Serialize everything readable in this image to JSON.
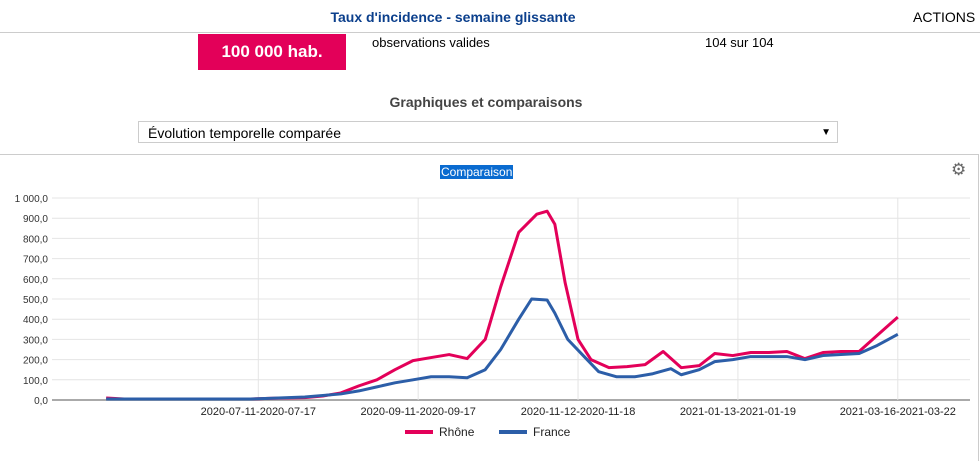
{
  "header": {
    "title": "Taux d'incidence - semaine glissante",
    "actions": "ACTIONS"
  },
  "summary": {
    "unit_badge": "100 000 hab.",
    "obs_label": "observations valides",
    "obs_value": "104 sur 104"
  },
  "section": {
    "title": "Graphiques et comparaisons",
    "select_value": "Évolution temporelle comparée"
  },
  "chart_data": {
    "type": "line",
    "title": "Comparaison",
    "xlabel": "",
    "ylabel": "",
    "ylim": [
      0,
      1000
    ],
    "xlim_days": [
      -21,
      335
    ],
    "grid": true,
    "legend": "bottom",
    "y_ticks": [
      0,
      100,
      200,
      300,
      400,
      500,
      600,
      700,
      800,
      900,
      1000
    ],
    "y_tick_labels": [
      "0,0",
      "100,0",
      "200,0",
      "300,0",
      "400,0",
      "500,0",
      "600,0",
      "700,0",
      "800,0",
      "900,0",
      "1 000,0"
    ],
    "x_ticks": [
      {
        "day": 59,
        "label": "2020-07-11-2020-07-17"
      },
      {
        "day": 121,
        "label": "2020-09-11-2020-09-17"
      },
      {
        "day": 183,
        "label": "2020-11-12-2020-11-18"
      },
      {
        "day": 245,
        "label": "2021-01-13-2021-01-19"
      },
      {
        "day": 307,
        "label": "2021-03-16-2021-03-22"
      }
    ],
    "x_unit": "days since start of series",
    "series": [
      {
        "name": "Rhône",
        "color": "#e30059",
        "points": [
          [
            0,
            10
          ],
          [
            7,
            5
          ],
          [
            14,
            5
          ],
          [
            21,
            5
          ],
          [
            28,
            5
          ],
          [
            35,
            5
          ],
          [
            42,
            5
          ],
          [
            49,
            5
          ],
          [
            56,
            5
          ],
          [
            63,
            8
          ],
          [
            70,
            10
          ],
          [
            77,
            12
          ],
          [
            84,
            20
          ],
          [
            91,
            35
          ],
          [
            98,
            70
          ],
          [
            105,
            100
          ],
          [
            112,
            150
          ],
          [
            119,
            195
          ],
          [
            126,
            210
          ],
          [
            133,
            225
          ],
          [
            140,
            205
          ],
          [
            147,
            300
          ],
          [
            153,
            560
          ],
          [
            160,
            830
          ],
          [
            167,
            920
          ],
          [
            171,
            935
          ],
          [
            174,
            870
          ],
          [
            178,
            580
          ],
          [
            183,
            300
          ],
          [
            188,
            200
          ],
          [
            195,
            160
          ],
          [
            202,
            165
          ],
          [
            209,
            175
          ],
          [
            216,
            240
          ],
          [
            223,
            160
          ],
          [
            230,
            170
          ],
          [
            236,
            230
          ],
          [
            243,
            220
          ],
          [
            250,
            235
          ],
          [
            257,
            235
          ],
          [
            264,
            240
          ],
          [
            271,
            205
          ],
          [
            278,
            235
          ],
          [
            285,
            240
          ],
          [
            292,
            240
          ],
          [
            299,
            320
          ],
          [
            307,
            410
          ]
        ]
      },
      {
        "name": "France",
        "color": "#2c5ea8",
        "points": [
          [
            0,
            5
          ],
          [
            7,
            5
          ],
          [
            14,
            5
          ],
          [
            21,
            5
          ],
          [
            28,
            5
          ],
          [
            35,
            5
          ],
          [
            42,
            5
          ],
          [
            49,
            5
          ],
          [
            56,
            5
          ],
          [
            63,
            8
          ],
          [
            77,
            15
          ],
          [
            91,
            30
          ],
          [
            98,
            45
          ],
          [
            105,
            65
          ],
          [
            112,
            85
          ],
          [
            119,
            100
          ],
          [
            126,
            115
          ],
          [
            133,
            115
          ],
          [
            140,
            110
          ],
          [
            147,
            150
          ],
          [
            153,
            250
          ],
          [
            160,
            400
          ],
          [
            165,
            500
          ],
          [
            171,
            495
          ],
          [
            174,
            430
          ],
          [
            179,
            300
          ],
          [
            185,
            220
          ],
          [
            191,
            140
          ],
          [
            198,
            115
          ],
          [
            205,
            115
          ],
          [
            212,
            130
          ],
          [
            219,
            155
          ],
          [
            223,
            125
          ],
          [
            230,
            150
          ],
          [
            236,
            190
          ],
          [
            243,
            200
          ],
          [
            250,
            215
          ],
          [
            257,
            215
          ],
          [
            264,
            215
          ],
          [
            271,
            200
          ],
          [
            278,
            220
          ],
          [
            285,
            225
          ],
          [
            292,
            230
          ],
          [
            299,
            270
          ],
          [
            307,
            325
          ]
        ]
      }
    ]
  }
}
